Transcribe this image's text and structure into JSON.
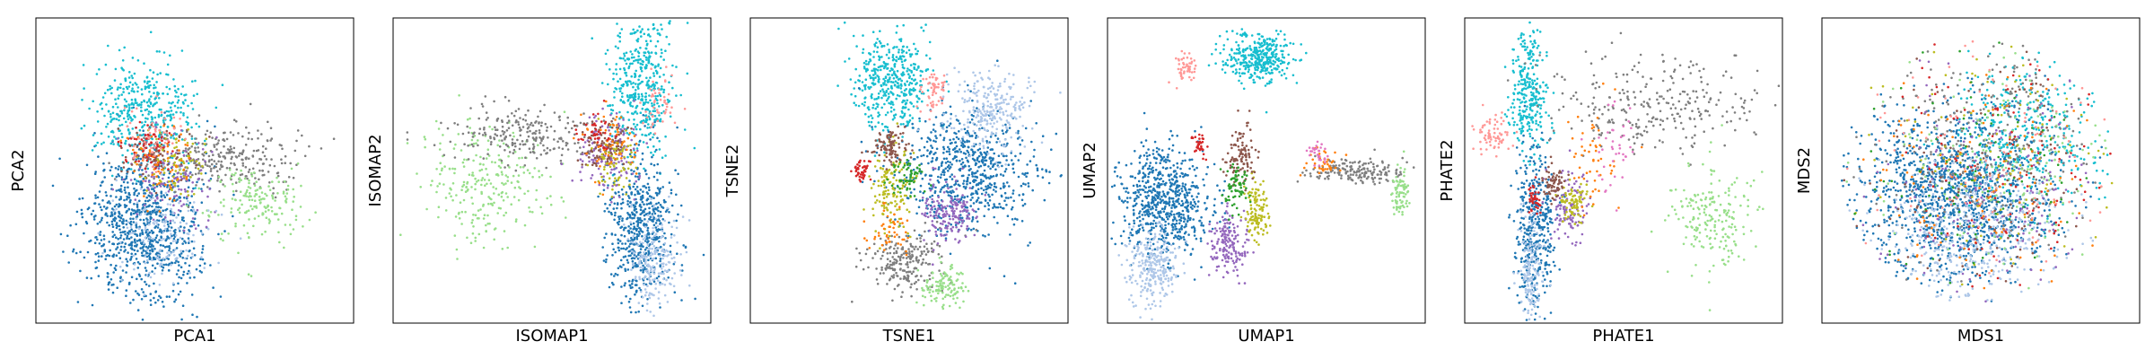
{
  "palette": {
    "blue": "#1f77b4",
    "light_blue": "#aec7e8",
    "cyan": "#17becf",
    "gray": "#7f7f7f",
    "light_green": "#98df8a",
    "purple": "#9467bd",
    "pink": "#ff9896",
    "red": "#d62728",
    "olive": "#bcbd22",
    "brown": "#8c564b",
    "orange": "#ff7f0e",
    "green": "#2ca02c",
    "magenta": "#e377c2"
  },
  "chart_data": [
    {
      "type": "scatter",
      "xlabel": "PCA1",
      "ylabel": "PCA2",
      "grid": false,
      "ticks": false,
      "clusters": [
        {
          "color": "blue",
          "cx": 0.34,
          "cy": 0.31,
          "sx": 0.09,
          "sy": 0.12,
          "n": 900
        },
        {
          "color": "cyan",
          "cx": 0.34,
          "cy": 0.7,
          "sx": 0.08,
          "sy": 0.09,
          "n": 420
        },
        {
          "color": "gray",
          "cx": 0.6,
          "cy": 0.54,
          "sx": 0.12,
          "sy": 0.06,
          "n": 260
        },
        {
          "color": "light_green",
          "cx": 0.7,
          "cy": 0.4,
          "sx": 0.08,
          "sy": 0.06,
          "n": 170
        },
        {
          "color": "purple",
          "cx": 0.42,
          "cy": 0.48,
          "sx": 0.06,
          "sy": 0.07,
          "n": 130
        },
        {
          "color": "brown",
          "cx": 0.38,
          "cy": 0.56,
          "sx": 0.05,
          "sy": 0.05,
          "n": 90
        },
        {
          "color": "olive",
          "cx": 0.44,
          "cy": 0.52,
          "sx": 0.05,
          "sy": 0.05,
          "n": 80
        },
        {
          "color": "red",
          "cx": 0.35,
          "cy": 0.58,
          "sx": 0.04,
          "sy": 0.04,
          "n": 60
        },
        {
          "color": "orange",
          "cx": 0.4,
          "cy": 0.52,
          "sx": 0.06,
          "sy": 0.06,
          "n": 60
        },
        {
          "color": "light_blue",
          "cx": 0.4,
          "cy": 0.28,
          "sx": 0.08,
          "sy": 0.08,
          "n": 140
        },
        {
          "color": "pink",
          "cx": 0.37,
          "cy": 0.62,
          "sx": 0.05,
          "sy": 0.05,
          "n": 50
        }
      ]
    },
    {
      "type": "scatter",
      "xlabel": "ISOMAP1",
      "ylabel": "ISOMAP2",
      "grid": false,
      "ticks": false,
      "clusters": [
        {
          "color": "cyan",
          "cx": 0.78,
          "cy": 0.78,
          "sx": 0.05,
          "sy": 0.11,
          "n": 420
        },
        {
          "color": "blue",
          "cx": 0.78,
          "cy": 0.3,
          "sx": 0.05,
          "sy": 0.12,
          "n": 560
        },
        {
          "color": "light_blue",
          "cx": 0.82,
          "cy": 0.22,
          "sx": 0.04,
          "sy": 0.08,
          "n": 200
        },
        {
          "color": "light_green",
          "cx": 0.3,
          "cy": 0.45,
          "sx": 0.1,
          "sy": 0.1,
          "n": 260
        },
        {
          "color": "gray",
          "cx": 0.42,
          "cy": 0.62,
          "sx": 0.12,
          "sy": 0.05,
          "n": 240
        },
        {
          "color": "purple",
          "cx": 0.68,
          "cy": 0.56,
          "sx": 0.05,
          "sy": 0.06,
          "n": 160
        },
        {
          "color": "brown",
          "cx": 0.66,
          "cy": 0.58,
          "sx": 0.04,
          "sy": 0.04,
          "n": 90
        },
        {
          "color": "olive",
          "cx": 0.7,
          "cy": 0.52,
          "sx": 0.03,
          "sy": 0.05,
          "n": 70
        },
        {
          "color": "orange",
          "cx": 0.68,
          "cy": 0.6,
          "sx": 0.05,
          "sy": 0.05,
          "n": 60
        },
        {
          "color": "pink",
          "cx": 0.84,
          "cy": 0.72,
          "sx": 0.03,
          "sy": 0.05,
          "n": 50
        },
        {
          "color": "red",
          "cx": 0.64,
          "cy": 0.62,
          "sx": 0.03,
          "sy": 0.03,
          "n": 40
        }
      ]
    },
    {
      "type": "scatter",
      "xlabel": "TSNE1",
      "ylabel": "TSNE2",
      "grid": false,
      "ticks": false,
      "clusters": [
        {
          "color": "cyan",
          "cx": 0.44,
          "cy": 0.79,
          "sx": 0.06,
          "sy": 0.08,
          "n": 420
        },
        {
          "color": "blue",
          "cx": 0.68,
          "cy": 0.5,
          "sx": 0.11,
          "sy": 0.1,
          "n": 700
        },
        {
          "color": "light_blue",
          "cx": 0.76,
          "cy": 0.7,
          "sx": 0.07,
          "sy": 0.07,
          "n": 260
        },
        {
          "color": "gray",
          "cx": 0.48,
          "cy": 0.2,
          "sx": 0.06,
          "sy": 0.05,
          "n": 220
        },
        {
          "color": "light_green",
          "cx": 0.6,
          "cy": 0.12,
          "sx": 0.04,
          "sy": 0.03,
          "n": 120
        },
        {
          "color": "purple",
          "cx": 0.62,
          "cy": 0.36,
          "sx": 0.04,
          "sy": 0.05,
          "n": 170
        },
        {
          "color": "olive",
          "cx": 0.44,
          "cy": 0.44,
          "sx": 0.03,
          "sy": 0.07,
          "n": 150
        },
        {
          "color": "brown",
          "cx": 0.44,
          "cy": 0.58,
          "sx": 0.03,
          "sy": 0.03,
          "n": 100
        },
        {
          "color": "red",
          "cx": 0.35,
          "cy": 0.5,
          "sx": 0.012,
          "sy": 0.02,
          "n": 45
        },
        {
          "color": "pink",
          "cx": 0.58,
          "cy": 0.76,
          "sx": 0.02,
          "sy": 0.03,
          "n": 60
        },
        {
          "color": "green",
          "cx": 0.5,
          "cy": 0.48,
          "sx": 0.03,
          "sy": 0.03,
          "n": 60
        },
        {
          "color": "orange",
          "cx": 0.44,
          "cy": 0.3,
          "sx": 0.03,
          "sy": 0.04,
          "n": 50
        }
      ]
    },
    {
      "type": "scatter",
      "xlabel": "UMAP1",
      "ylabel": "UMAP2",
      "grid": false,
      "ticks": false,
      "clusters": [
        {
          "color": "cyan",
          "cx": 0.47,
          "cy": 0.87,
          "sx": 0.05,
          "sy": 0.04,
          "n": 360
        },
        {
          "color": "pink",
          "cx": 0.25,
          "cy": 0.84,
          "sx": 0.02,
          "sy": 0.02,
          "n": 50
        },
        {
          "color": "blue",
          "cx": 0.18,
          "cy": 0.4,
          "sx": 0.07,
          "sy": 0.09,
          "n": 700
        },
        {
          "color": "light_blue",
          "cx": 0.14,
          "cy": 0.18,
          "sx": 0.04,
          "sy": 0.06,
          "n": 260
        },
        {
          "color": "purple",
          "cx": 0.38,
          "cy": 0.26,
          "sx": 0.03,
          "sy": 0.05,
          "n": 170
        },
        {
          "color": "olive",
          "cx": 0.47,
          "cy": 0.36,
          "sx": 0.02,
          "sy": 0.05,
          "n": 120
        },
        {
          "color": "brown",
          "cx": 0.42,
          "cy": 0.55,
          "sx": 0.025,
          "sy": 0.05,
          "n": 110
        },
        {
          "color": "red",
          "cx": 0.29,
          "cy": 0.58,
          "sx": 0.01,
          "sy": 0.02,
          "n": 35
        },
        {
          "color": "gray",
          "cx": 0.78,
          "cy": 0.5,
          "sx": 0.07,
          "sy": 0.02,
          "n": 180
        },
        {
          "color": "light_green",
          "cx": 0.92,
          "cy": 0.43,
          "sx": 0.015,
          "sy": 0.04,
          "n": 80
        },
        {
          "color": "green",
          "cx": 0.4,
          "cy": 0.45,
          "sx": 0.02,
          "sy": 0.04,
          "n": 70
        },
        {
          "color": "orange",
          "cx": 0.68,
          "cy": 0.53,
          "sx": 0.03,
          "sy": 0.02,
          "n": 40
        },
        {
          "color": "magenta",
          "cx": 0.66,
          "cy": 0.56,
          "sx": 0.02,
          "sy": 0.02,
          "n": 30
        }
      ]
    },
    {
      "type": "scatter",
      "xlabel": "PHATE1",
      "ylabel": "PHATE2",
      "grid": false,
      "ticks": false,
      "clusters": [
        {
          "color": "cyan",
          "cx": 0.2,
          "cy": 0.75,
          "sx": 0.03,
          "sy": 0.1,
          "n": 300
        },
        {
          "color": "pink",
          "cx": 0.09,
          "cy": 0.62,
          "sx": 0.03,
          "sy": 0.03,
          "n": 70
        },
        {
          "color": "blue",
          "cx": 0.22,
          "cy": 0.3,
          "sx": 0.03,
          "sy": 0.13,
          "n": 420
        },
        {
          "color": "light_blue",
          "cx": 0.21,
          "cy": 0.2,
          "sx": 0.02,
          "sy": 0.1,
          "n": 150
        },
        {
          "color": "purple",
          "cx": 0.33,
          "cy": 0.38,
          "sx": 0.03,
          "sy": 0.06,
          "n": 120
        },
        {
          "color": "olive",
          "cx": 0.34,
          "cy": 0.4,
          "sx": 0.02,
          "sy": 0.03,
          "n": 80
        },
        {
          "color": "red",
          "cx": 0.22,
          "cy": 0.4,
          "sx": 0.01,
          "sy": 0.03,
          "n": 40
        },
        {
          "color": "gray",
          "cx": 0.6,
          "cy": 0.72,
          "sx": 0.16,
          "sy": 0.08,
          "n": 280
        },
        {
          "color": "light_green",
          "cx": 0.78,
          "cy": 0.35,
          "sx": 0.07,
          "sy": 0.08,
          "n": 200
        },
        {
          "color": "brown",
          "cx": 0.28,
          "cy": 0.46,
          "sx": 0.02,
          "sy": 0.03,
          "n": 70
        },
        {
          "color": "orange",
          "cx": 0.4,
          "cy": 0.55,
          "sx": 0.05,
          "sy": 0.1,
          "n": 50
        },
        {
          "color": "magenta",
          "cx": 0.48,
          "cy": 0.6,
          "sx": 0.04,
          "sy": 0.08,
          "n": 40
        }
      ]
    },
    {
      "type": "scatter",
      "xlabel": "MDS1",
      "ylabel": "MDS2",
      "grid": false,
      "ticks": false,
      "clusters": [
        {
          "color": "blue",
          "cx": 0.42,
          "cy": 0.42,
          "sx": 0.15,
          "sy": 0.14,
          "n": 1300,
          "disc": 0.44
        },
        {
          "color": "light_blue",
          "cx": 0.48,
          "cy": 0.3,
          "sx": 0.15,
          "sy": 0.12,
          "n": 420,
          "disc": 0.44
        },
        {
          "color": "cyan",
          "cx": 0.64,
          "cy": 0.62,
          "sx": 0.12,
          "sy": 0.12,
          "n": 360,
          "disc": 0.44
        },
        {
          "color": "gray",
          "cx": 0.52,
          "cy": 0.6,
          "sx": 0.18,
          "sy": 0.16,
          "n": 280,
          "disc": 0.44
        },
        {
          "color": "light_green",
          "cx": 0.58,
          "cy": 0.55,
          "sx": 0.18,
          "sy": 0.18,
          "n": 160,
          "disc": 0.44
        },
        {
          "color": "purple",
          "cx": 0.56,
          "cy": 0.45,
          "sx": 0.18,
          "sy": 0.18,
          "n": 160,
          "disc": 0.44
        },
        {
          "color": "orange",
          "cx": 0.5,
          "cy": 0.5,
          "sx": 0.2,
          "sy": 0.2,
          "n": 120,
          "disc": 0.44
        },
        {
          "color": "red",
          "cx": 0.55,
          "cy": 0.5,
          "sx": 0.2,
          "sy": 0.2,
          "n": 100,
          "disc": 0.44
        },
        {
          "color": "pink",
          "cx": 0.5,
          "cy": 0.55,
          "sx": 0.2,
          "sy": 0.2,
          "n": 100,
          "disc": 0.44
        },
        {
          "color": "brown",
          "cx": 0.5,
          "cy": 0.5,
          "sx": 0.2,
          "sy": 0.2,
          "n": 100,
          "disc": 0.44
        },
        {
          "color": "olive",
          "cx": 0.55,
          "cy": 0.55,
          "sx": 0.2,
          "sy": 0.2,
          "n": 100,
          "disc": 0.44
        },
        {
          "color": "green",
          "cx": 0.5,
          "cy": 0.45,
          "sx": 0.2,
          "sy": 0.2,
          "n": 80,
          "disc": 0.44
        }
      ]
    }
  ]
}
